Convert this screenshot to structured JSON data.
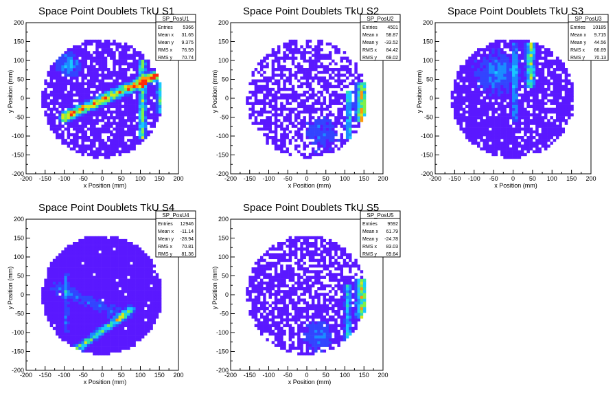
{
  "page": {
    "background": "#ffffff"
  },
  "palette": [
    "#5a18ff",
    "#3344ff",
    "#1a8cff",
    "#19c8ff",
    "#2de0b0",
    "#7ef04a",
    "#d6e81c",
    "#ff9a0a",
    "#ff2a0a"
  ],
  "chart_data": [
    {
      "type": "heatmap",
      "title": "Space Point Doublets TkU S1",
      "xlabel": "x Position (mm)",
      "ylabel": "y Position (mm)",
      "xlim": [
        -200,
        200
      ],
      "ylim": [
        -200,
        200
      ],
      "xticks": [
        -200,
        -150,
        -100,
        -50,
        0,
        50,
        100,
        150,
        200
      ],
      "yticks": [
        -200,
        -150,
        -100,
        -50,
        0,
        50,
        100,
        150,
        200
      ],
      "stats": {
        "name": "SP_PosU1",
        "rows": [
          [
            "Entries",
            "5366"
          ],
          [
            "Mean x",
            "31.65"
          ],
          [
            "Mean y",
            "9.375"
          ],
          [
            "RMS x",
            "76.59"
          ],
          [
            "RMS y",
            "70.74"
          ]
        ]
      },
      "disk_radius": 160,
      "bin_size": 7.5,
      "empty_fraction": 0.18,
      "features": [
        {
          "kind": "band",
          "from": [
            -100,
            -50
          ],
          "to": [
            140,
            60
          ],
          "width": 18,
          "peak": 8
        },
        {
          "kind": "vband",
          "x": 105,
          "ylim": [
            -110,
            100
          ],
          "width": 14,
          "peak": 5
        },
        {
          "kind": "vband",
          "x": 150,
          "ylim": [
            -40,
            40
          ],
          "width": 10,
          "peak": 4
        },
        {
          "kind": "blob",
          "center": [
            -90,
            90
          ],
          "radius": 40,
          "peak": 3
        }
      ]
    },
    {
      "type": "heatmap",
      "title": "Space Point Doublets TkU S2",
      "xlabel": "x Position (mm)",
      "ylabel": "y Position (mm)",
      "xlim": [
        -200,
        200
      ],
      "ylim": [
        -200,
        200
      ],
      "xticks": [
        -200,
        -150,
        -100,
        -50,
        0,
        50,
        100,
        150,
        200
      ],
      "yticks": [
        -200,
        -150,
        -100,
        -50,
        0,
        50,
        100,
        150,
        200
      ],
      "stats": {
        "name": "SP_PosU2",
        "rows": [
          [
            "Entries",
            "4501"
          ],
          [
            "Mean x",
            "58.87"
          ],
          [
            "Mean y",
            "-33.52"
          ],
          [
            "RMS x",
            "84.42"
          ],
          [
            "RMS y",
            "69.02"
          ]
        ]
      },
      "disk_radius": 160,
      "bin_size": 7.5,
      "empty_fraction": 0.42,
      "features": [
        {
          "kind": "vband",
          "x": 145,
          "ylim": [
            -60,
            40
          ],
          "width": 22,
          "peak": 6
        },
        {
          "kind": "vband",
          "x": 110,
          "ylim": [
            -110,
            20
          ],
          "width": 12,
          "peak": 4
        },
        {
          "kind": "blob",
          "center": [
            40,
            -90
          ],
          "radius": 60,
          "peak": 1.5
        }
      ]
    },
    {
      "type": "heatmap",
      "title": "Space Point Doublets TkU S3",
      "xlabel": "x Position (mm)",
      "ylabel": "y Position (mm)",
      "xlim": [
        -200,
        200
      ],
      "ylim": [
        -200,
        200
      ],
      "xticks": [
        -200,
        -150,
        -100,
        -50,
        0,
        50,
        100,
        150,
        200
      ],
      "yticks": [
        -200,
        -150,
        -100,
        -50,
        0,
        50,
        100,
        150,
        200
      ],
      "stats": {
        "name": "SP_PosU3",
        "rows": [
          [
            "Entries",
            "10185"
          ],
          [
            "Mean x",
            "9.715"
          ],
          [
            "Mean y",
            "44.56"
          ],
          [
            "RMS x",
            "66.69"
          ],
          [
            "RMS y",
            "70.13"
          ]
        ]
      },
      "disk_radius": 160,
      "bin_size": 7.5,
      "empty_fraction": 0.14,
      "features": [
        {
          "kind": "vband",
          "x": 5,
          "ylim": [
            -60,
            150
          ],
          "width": 10,
          "peak": 3
        },
        {
          "kind": "vband",
          "x": 45,
          "ylim": [
            30,
            150
          ],
          "width": 16,
          "peak": 5
        },
        {
          "kind": "blob",
          "center": [
            -40,
            70
          ],
          "radius": 70,
          "peak": 2.5
        }
      ]
    },
    {
      "type": "heatmap",
      "title": "Space Point Doublets TkU S4",
      "xlabel": "x Position (mm)",
      "ylabel": "y Position (mm)",
      "xlim": [
        -200,
        200
      ],
      "ylim": [
        -200,
        200
      ],
      "xticks": [
        -200,
        -150,
        -100,
        -50,
        0,
        50,
        100,
        150,
        200
      ],
      "yticks": [
        -200,
        -150,
        -100,
        -50,
        0,
        50,
        100,
        150,
        200
      ],
      "stats": {
        "name": "SP_PosU4",
        "rows": [
          [
            "Entries",
            "12946"
          ],
          [
            "Mean x",
            "-11.14"
          ],
          [
            "Mean y",
            "-28.94"
          ],
          [
            "RMS x",
            "70.81"
          ],
          [
            "RMS y",
            "81.36"
          ]
        ]
      },
      "disk_radius": 160,
      "bin_size": 7.5,
      "empty_fraction": 0.02,
      "features": [
        {
          "kind": "band",
          "from": [
            -75,
            -150
          ],
          "to": [
            75,
            -40
          ],
          "width": 14,
          "peak": 5
        },
        {
          "kind": "band",
          "from": [
            -120,
            20
          ],
          "to": [
            60,
            -60
          ],
          "width": 20,
          "peak": 1.6
        },
        {
          "kind": "vband",
          "x": -95,
          "ylim": [
            -100,
            60
          ],
          "width": 10,
          "peak": 1.8
        }
      ]
    },
    {
      "type": "heatmap",
      "title": "Space Point Doublets TkU S5",
      "xlabel": "x Position (mm)",
      "ylabel": "y Position (mm)",
      "xlim": [
        -200,
        200
      ],
      "ylim": [
        -200,
        200
      ],
      "xticks": [
        -200,
        -150,
        -100,
        -50,
        0,
        50,
        100,
        150,
        200
      ],
      "yticks": [
        -200,
        -150,
        -100,
        -50,
        0,
        50,
        100,
        150,
        200
      ],
      "stats": {
        "name": "SP_PosU5",
        "rows": [
          [
            "Entries",
            "9592"
          ],
          [
            "Mean x",
            "61.79"
          ],
          [
            "Mean y",
            "-24.78"
          ],
          [
            "RMS x",
            "83.03"
          ],
          [
            "RMS y",
            "69.64"
          ]
        ]
      },
      "disk_radius": 160,
      "bin_size": 7.5,
      "empty_fraction": 0.3,
      "features": [
        {
          "kind": "vband",
          "x": 145,
          "ylim": [
            -60,
            40
          ],
          "width": 20,
          "peak": 6
        },
        {
          "kind": "vband",
          "x": 108,
          "ylim": [
            -140,
            30
          ],
          "width": 12,
          "peak": 3.5
        },
        {
          "kind": "blob",
          "center": [
            30,
            -110
          ],
          "radius": 50,
          "peak": 2
        }
      ]
    }
  ]
}
